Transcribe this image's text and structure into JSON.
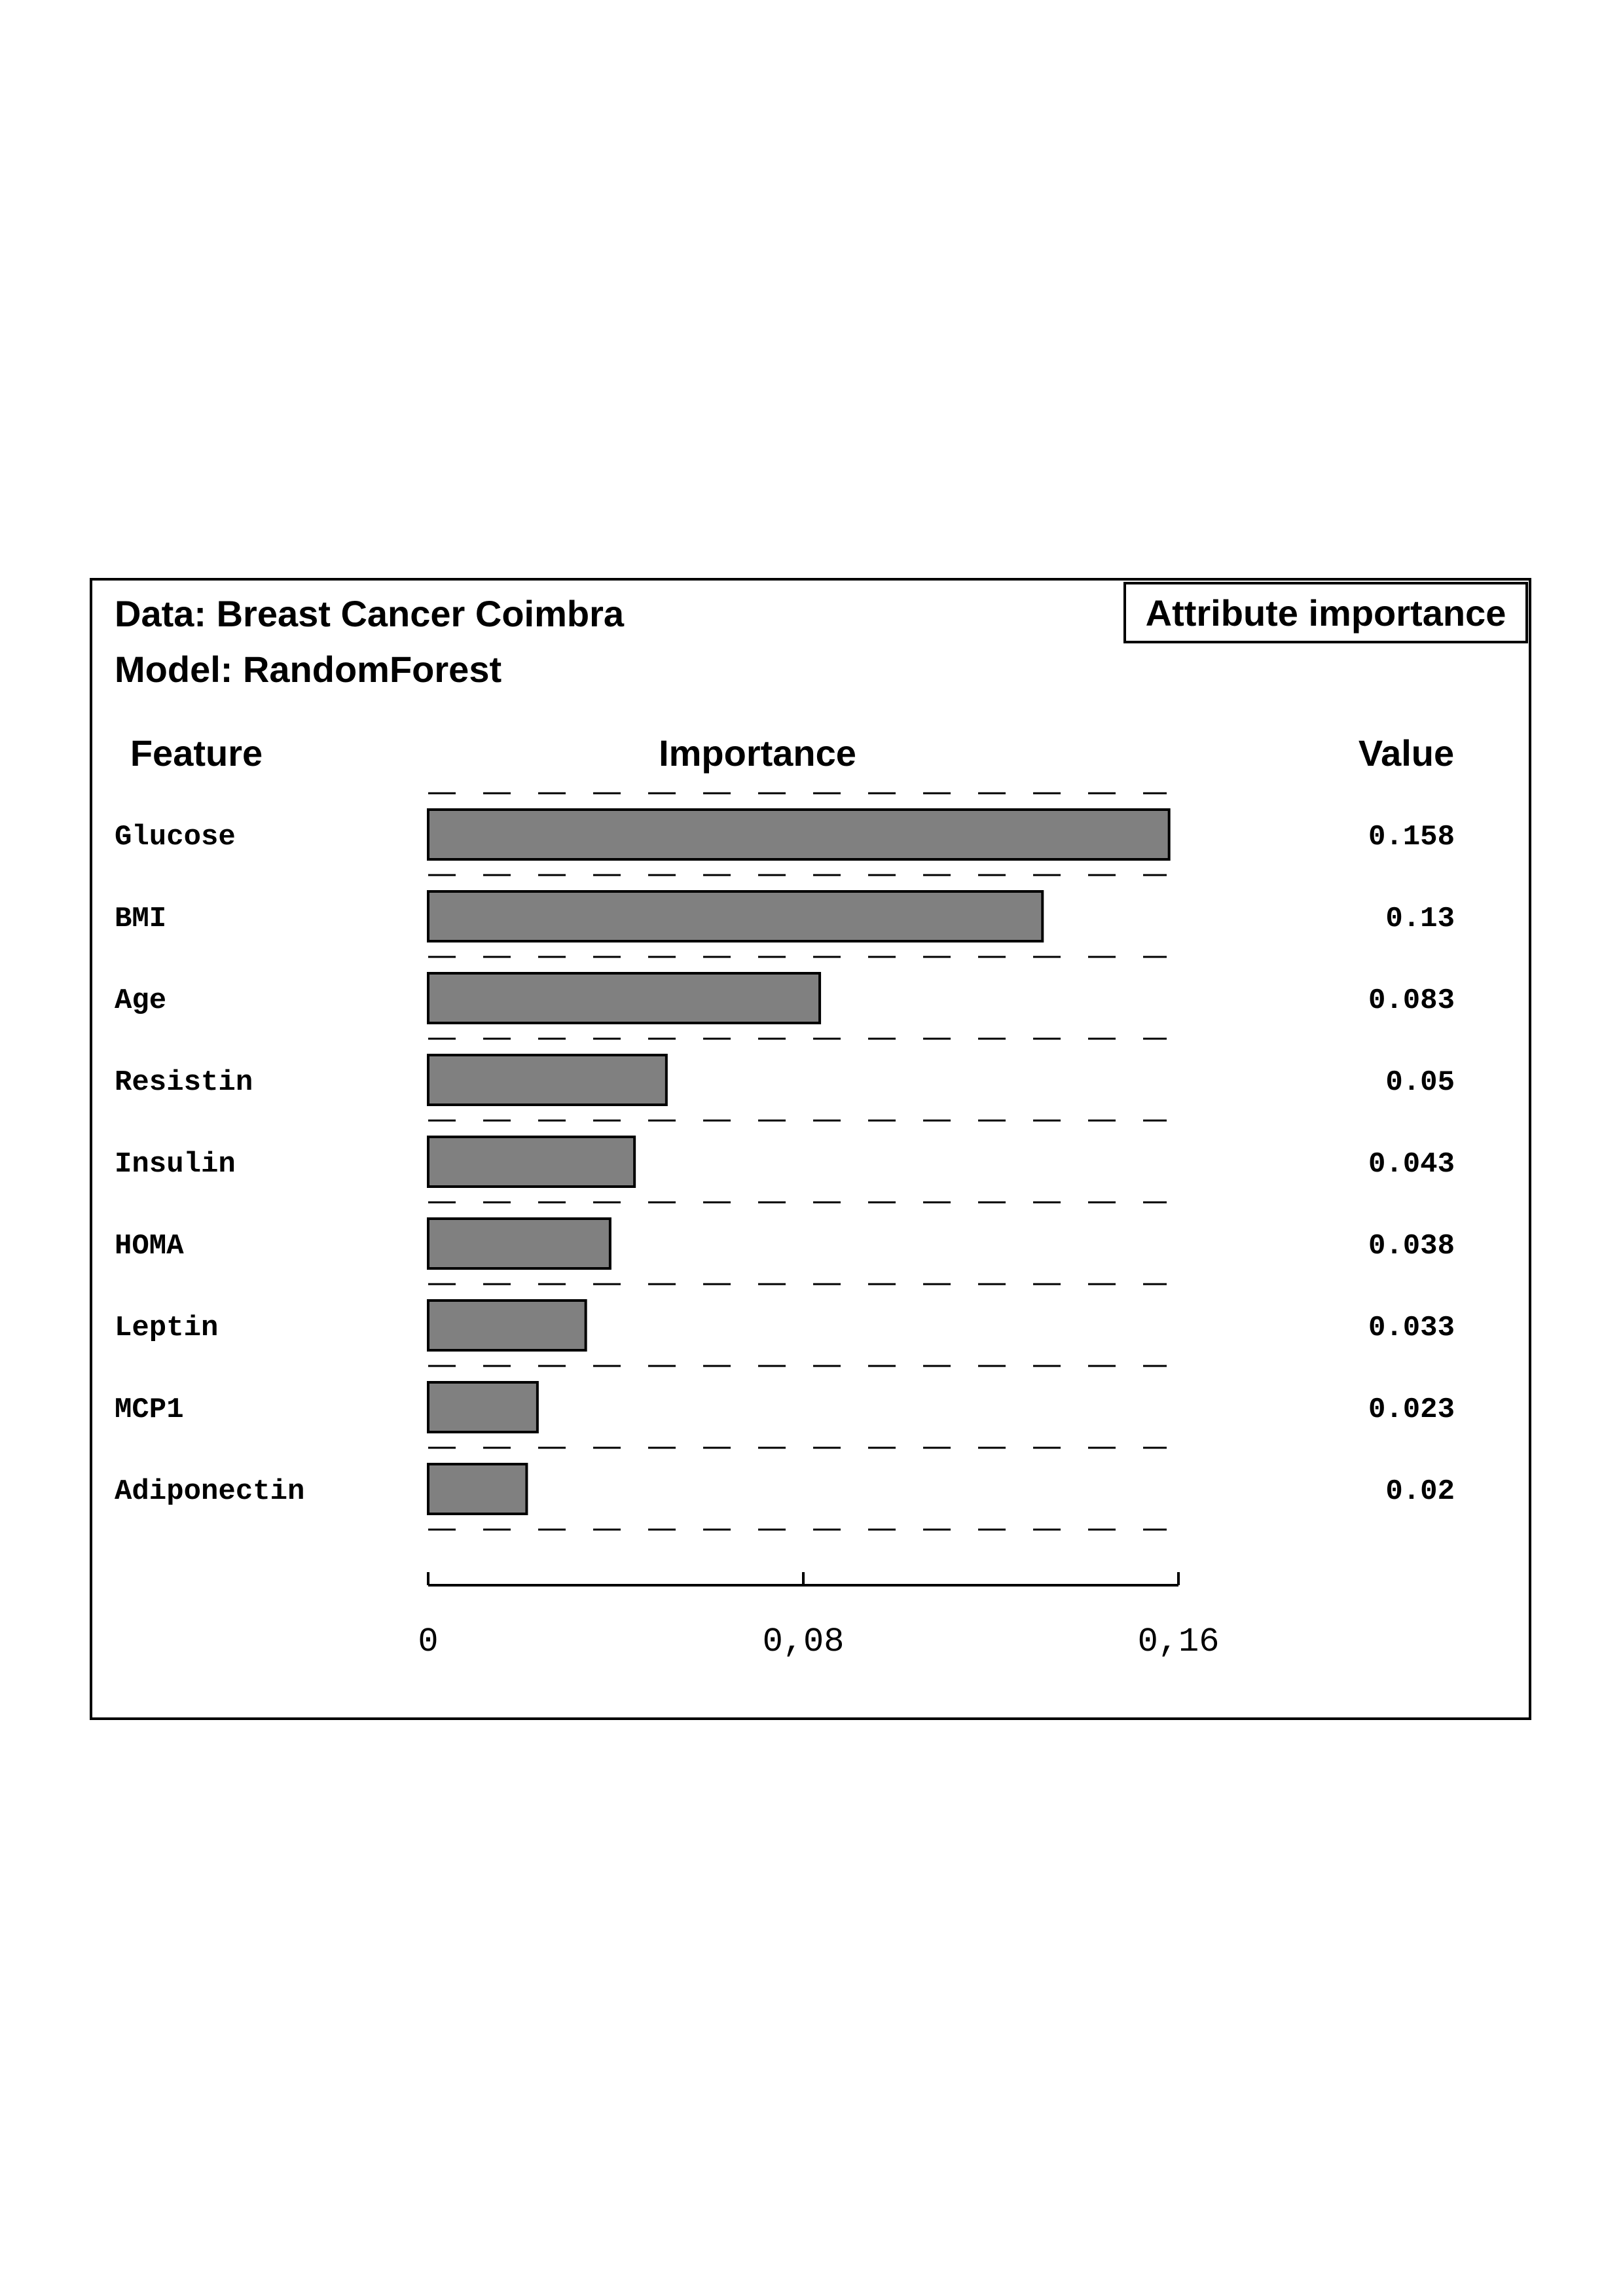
{
  "header": {
    "data_line": "Data: Breast Cancer Coimbra",
    "model_line": "Model: RandomForest",
    "badge": "Attribute importance"
  },
  "columns": {
    "feature": "Feature",
    "importance": "Importance",
    "value": "Value"
  },
  "chart_data": {
    "type": "bar",
    "orientation": "horizontal",
    "categories": [
      "Glucose",
      "BMI",
      "Age",
      "Resistin",
      "Insulin",
      "HOMA",
      "Leptin",
      "MCP1",
      "Adiponectin"
    ],
    "values": [
      0.158,
      0.13,
      0.083,
      0.05,
      0.043,
      0.038,
      0.033,
      0.023,
      0.02
    ],
    "value_labels": [
      "0.158",
      "0.13",
      "0.083",
      "0.05",
      "0.043",
      "0.038",
      "0.033",
      "0.023",
      "0.02"
    ],
    "bar_values": [
      0.158,
      0.131,
      0.0835,
      0.0508,
      0.044,
      0.0388,
      0.0336,
      0.0233,
      0.021
    ],
    "xlim": [
      0,
      0.16
    ],
    "xticks": [
      0,
      0.08,
      0.16
    ],
    "xtick_labels": [
      "0",
      "0,08",
      "0,16"
    ],
    "grid": "dashed separators between rows",
    "colors": {
      "bar_fill": "#808080",
      "bar_stroke": "#000000"
    }
  }
}
